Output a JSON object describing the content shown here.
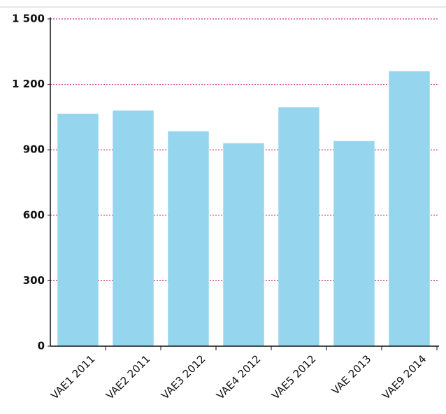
{
  "chart_data": {
    "type": "bar",
    "categories": [
      "VAE1 2011",
      "VAE2 2011",
      "VAE3 2012",
      "VAE4 2012",
      "VAE5 2012",
      "VAE 2013",
      "VAE9 2014"
    ],
    "values": [
      1065,
      1080,
      985,
      930,
      1095,
      940,
      1260
    ],
    "color": "#95d5ee",
    "ylim": [
      0,
      1500
    ],
    "yticks": [
      0,
      300,
      600,
      900,
      {
        "value": 1200,
        "label": "1 200"
      },
      {
        "value": 1500,
        "label": "1 500"
      }
    ],
    "grid": true,
    "grid_color": "#c2006d"
  }
}
